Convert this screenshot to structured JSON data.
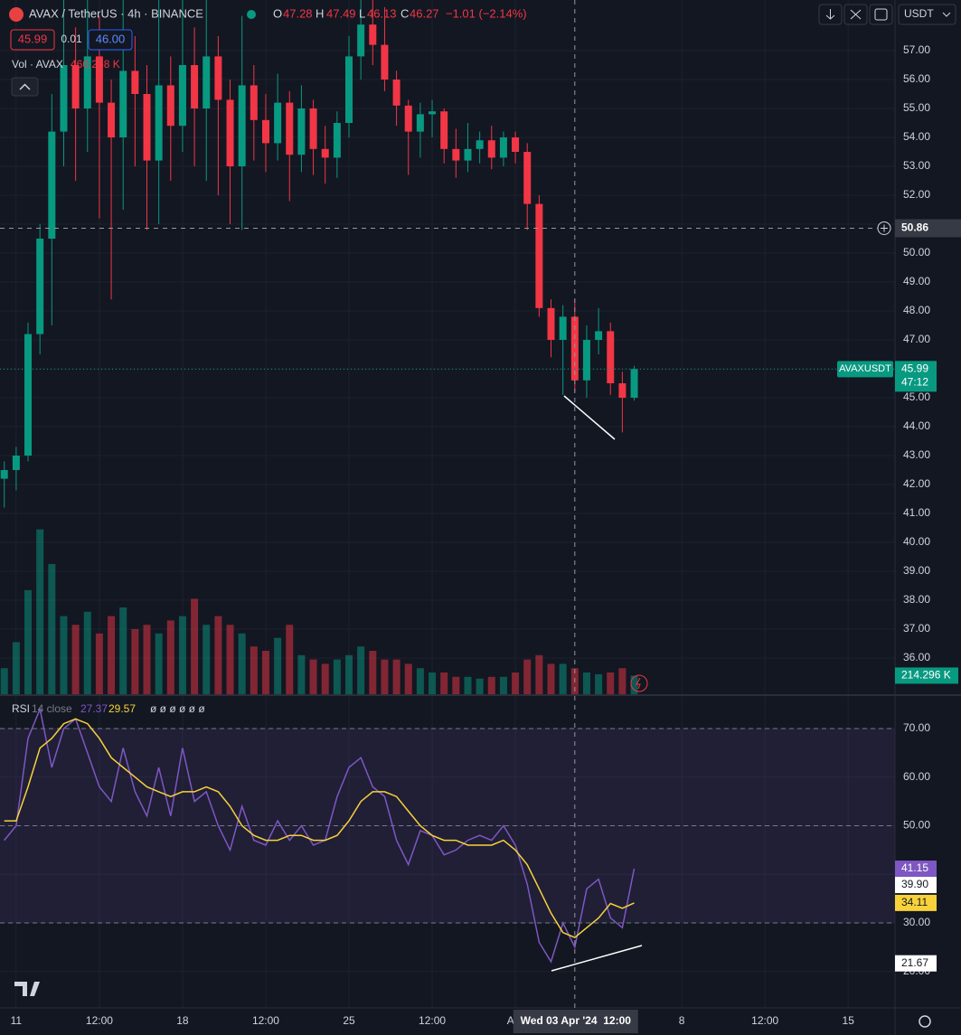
{
  "header": {
    "symbol": "AVAX / TetherUS · 4h · BINANCE",
    "o_label": "O",
    "open": "47.28",
    "h_label": "H",
    "high": "47.49",
    "l_label": "L",
    "low": "46.13",
    "c_label": "C",
    "close": "46.27",
    "change": "−1.01 (−2.14%)",
    "sell": "45.99",
    "spread": "0.01",
    "buy": "46.00",
    "currency": "USDT"
  },
  "chart_data": [
    {
      "type": "candlestick",
      "up_color": "#089981",
      "down_color": "#f23645",
      "x": [
        -0.5,
        0,
        0.5,
        1,
        1.5,
        2,
        2.5,
        3,
        3.5,
        4,
        4.5,
        5,
        5.5,
        6,
        6.5,
        7,
        7.5,
        8,
        8.5,
        9,
        9.5,
        10,
        10.5,
        11,
        11.5,
        12,
        12.5,
        13,
        13.5,
        14,
        14.5,
        15,
        15.5,
        16,
        16.5,
        17,
        17.5,
        18,
        18.5,
        19,
        19.5,
        20,
        20.5,
        21,
        21.5,
        22,
        22.5,
        23,
        23.5,
        24,
        24.5,
        25,
        25.5,
        26
      ],
      "open": [
        42.2,
        42.5,
        43,
        47.2,
        50.5,
        54.2,
        56.5,
        55,
        56.8,
        55.2,
        54,
        56.3,
        55.5,
        53.2,
        55.8,
        54.4,
        56.5,
        55,
        56.8,
        55.3,
        53,
        55.8,
        54.6,
        53.8,
        55.2,
        53.4,
        55,
        53.6,
        53.3,
        54.5,
        56.8,
        57.9,
        57.2,
        56,
        55.1,
        54.2,
        54.8,
        54.9,
        53.6,
        53.2,
        53.6,
        53.9,
        53.3,
        54,
        53.5,
        51.7,
        48.1,
        47,
        47.8,
        45.6,
        47,
        47.3,
        45.5,
        45
      ],
      "high": [
        42.8,
        43.3,
        47.6,
        51,
        55.5,
        58.9,
        57.8,
        58.9,
        58.2,
        56,
        58.9,
        57.5,
        56.5,
        58.9,
        56.8,
        58.9,
        57.8,
        58.9,
        57.5,
        56,
        58.2,
        56.5,
        55.5,
        56.2,
        55.6,
        55.8,
        55.3,
        54.4,
        54.9,
        57.5,
        58.9,
        58.9,
        58.5,
        56.3,
        55.3,
        55.2,
        55.3,
        55,
        54.3,
        54.5,
        54.2,
        54.4,
        54.2,
        54.2,
        53.8,
        52,
        48.4,
        48.2,
        48.4,
        47.5,
        48.1,
        47.6,
        45.9,
        46.1
      ],
      "low": [
        41.2,
        41.8,
        42.8,
        46.5,
        47.5,
        53,
        52.5,
        53.5,
        51.2,
        48.4,
        51.5,
        53,
        50.8,
        51,
        52.5,
        53.5,
        53,
        52.5,
        52,
        51,
        50.8,
        53.2,
        52.8,
        53.2,
        51.8,
        52.8,
        52.7,
        52.4,
        52.6,
        54,
        56,
        56.5,
        55.6,
        54.4,
        52.7,
        53.3,
        54,
        53.1,
        52.6,
        52.8,
        53.1,
        52.9,
        53,
        53.1,
        50.8,
        47.8,
        46.4,
        45.1,
        45.2,
        45,
        46.5,
        45.1,
        43.8,
        44.9
      ],
      "close": [
        42.5,
        43,
        47.2,
        50.5,
        54.2,
        56.5,
        55,
        56.8,
        55.2,
        54,
        56.3,
        55.5,
        53.2,
        55.8,
        54.4,
        56.5,
        55,
        56.8,
        55.3,
        53,
        55.8,
        54.6,
        53.8,
        55.2,
        53.4,
        55,
        53.6,
        53.3,
        54.5,
        56.8,
        57.9,
        57.2,
        56,
        55.1,
        54.2,
        54.8,
        54.9,
        53.6,
        53.2,
        53.6,
        53.9,
        53.3,
        54,
        53.5,
        51.7,
        48.1,
        47,
        47.8,
        45.6,
        47,
        47.3,
        45.5,
        45,
        45.99
      ],
      "xlim": [
        -0.68,
        36.97
      ],
      "ylim": [
        34.75,
        58.75
      ],
      "xticks": [
        {
          "value": 0,
          "label": "11"
        },
        {
          "value": 3.5,
          "label": "12:00"
        },
        {
          "value": 7,
          "label": "18"
        },
        {
          "value": 10.5,
          "label": "12:00"
        },
        {
          "value": 14,
          "label": "25"
        },
        {
          "value": 17.5,
          "label": "12:00"
        },
        {
          "value": 21,
          "label": "Apr"
        },
        {
          "value": 28,
          "label": "8"
        },
        {
          "value": 31.5,
          "label": "12:00"
        },
        {
          "value": 35,
          "label": "15"
        }
      ],
      "yticks": [
        {
          "value": 36,
          "label": "36.00"
        },
        {
          "value": 37,
          "label": "37.00"
        },
        {
          "value": 38,
          "label": "38.00"
        },
        {
          "value": 39,
          "label": "39.00"
        },
        {
          "value": 40,
          "label": "40.00"
        },
        {
          "value": 41,
          "label": "41.00"
        },
        {
          "value": 42,
          "label": "42.00"
        },
        {
          "value": 43,
          "label": "43.00"
        },
        {
          "value": 44,
          "label": "44.00"
        },
        {
          "value": 45,
          "label": "45.00"
        },
        {
          "value": 46,
          "label": "46.00"
        },
        {
          "value": 47,
          "label": "47.00"
        },
        {
          "value": 48,
          "label": "48.00"
        },
        {
          "value": 49,
          "label": "49.00"
        },
        {
          "value": 50,
          "label": "50.00"
        },
        {
          "value": 51,
          "label": "51.00"
        },
        {
          "value": 52,
          "label": "52.00"
        },
        {
          "value": 53,
          "label": "53.00"
        },
        {
          "value": 54,
          "label": "54.00"
        },
        {
          "value": 55,
          "label": "55.00"
        },
        {
          "value": 56,
          "label": "56.00"
        },
        {
          "value": 57,
          "label": "57.00"
        }
      ],
      "grid": true,
      "last_price": 45.99,
      "last_symbol": "AVAXUSDT",
      "countdown": "47:12",
      "crosshair_price": 50.86,
      "crosshair_x": {
        "value": 23.5,
        "label": "Wed 03 Apr '24  12:00"
      }
    },
    {
      "type": "bar",
      "name": "Vol · AVAX",
      "legend_value": "460.258 K",
      "up_color": "#089981",
      "down_color": "#f23645",
      "values": [
        300,
        600,
        1200,
        1900,
        1500,
        900,
        800,
        950,
        700,
        900,
        1000,
        750,
        800,
        700,
        850,
        900,
        1100,
        800,
        900,
        800,
        700,
        550,
        500,
        650,
        800,
        450,
        400,
        350,
        400,
        450,
        550,
        500,
        400,
        400,
        350,
        300,
        250,
        250,
        200,
        200,
        180,
        200,
        200,
        250,
        400,
        450,
        350,
        350,
        300,
        250,
        230,
        250,
        300,
        214.296
      ],
      "ylim": [
        0,
        2000
      ],
      "last_label": "214.296 K"
    },
    {
      "type": "line",
      "title": "RSI",
      "params": "14 close",
      "extra": "ø ø ø ø ø ø",
      "series": [
        {
          "color": "#7e57c2",
          "legend_value": "27.37",
          "values": [
            47,
            50,
            68,
            74,
            62,
            70,
            72,
            65,
            58,
            55,
            66,
            57,
            52,
            62,
            52,
            66,
            55,
            57,
            50,
            45,
            54,
            47,
            46,
            51,
            47,
            50,
            46,
            47,
            56,
            62,
            64,
            58,
            56,
            47,
            42,
            49,
            48,
            44,
            45,
            47,
            48,
            47,
            50,
            46,
            38,
            26,
            22,
            30,
            25,
            37,
            39,
            31,
            29,
            41.15
          ]
        },
        {
          "color": "#f7d23b",
          "legend_value": "29.57",
          "values": [
            51,
            51,
            58,
            66,
            68,
            71,
            72,
            71,
            68,
            64,
            62,
            60,
            58,
            57,
            56,
            57,
            57,
            58,
            57,
            54,
            50,
            48,
            47,
            47,
            48,
            48,
            47,
            47,
            48,
            51,
            55,
            57,
            57,
            56,
            53,
            50,
            48,
            47,
            47,
            46,
            46,
            46,
            47,
            45,
            42,
            37,
            32,
            28,
            27,
            29,
            31,
            34,
            33,
            34.11
          ]
        }
      ],
      "ylim": [
        12.5,
        76.7
      ],
      "yticks": [
        {
          "value": 20,
          "label": "20.00"
        },
        {
          "value": 30,
          "label": "30.00"
        },
        {
          "value": 40,
          "label": "40.00"
        },
        {
          "value": 50,
          "label": "50.00"
        },
        {
          "value": 60,
          "label": "60.00"
        },
        {
          "value": 70,
          "label": "70.00"
        }
      ],
      "bands": [
        70,
        50,
        30
      ],
      "markers": [
        {
          "value": 41.15,
          "label": "41.15",
          "color": "#7e57c2"
        },
        {
          "value": 39.9,
          "label": "39.90",
          "color": "#ffffff"
        },
        {
          "value": 34.11,
          "label": "34.11",
          "color": "#f7d23b"
        },
        {
          "value": 21.67,
          "label": "21.67",
          "color": "#ffffff"
        }
      ]
    }
  ]
}
